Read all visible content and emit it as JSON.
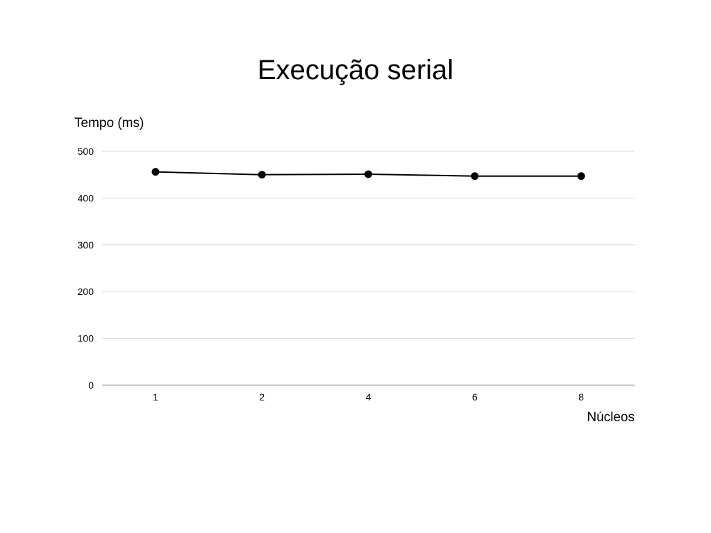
{
  "chart_data": {
    "type": "line",
    "title": "Execução serial",
    "xlabel": "Núcleos",
    "ylabel": "Tempo (ms)",
    "categories": [
      "1",
      "2",
      "4",
      "6",
      "8"
    ],
    "series": [
      {
        "values": [
          456,
          450,
          451,
          447,
          447
        ],
        "color": "#000000"
      }
    ],
    "ylim": [
      0,
      500
    ],
    "yticks": [
      0,
      100,
      200,
      300,
      400,
      500
    ],
    "grid": true,
    "legend": "none"
  }
}
